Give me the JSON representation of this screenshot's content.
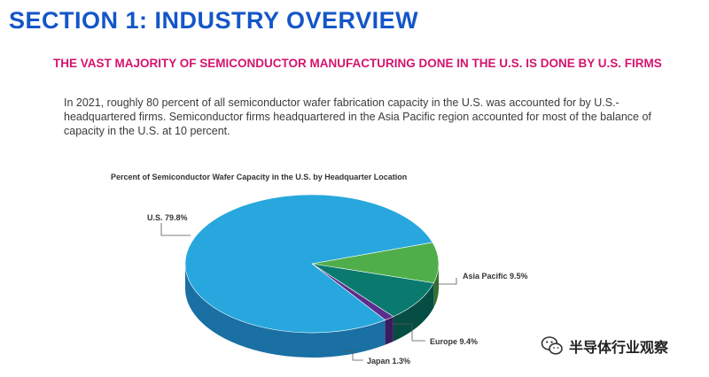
{
  "page": {
    "section_title": "SECTION 1: INDUSTRY OVERVIEW",
    "subtitle": "THE VAST MAJORITY OF SEMICONDUCTOR MANUFACTURING DONE IN THE U.S. IS DONE BY U.S. FIRMS",
    "paragraph": "In 2021, roughly 80 percent of all semiconductor wafer fabrication capacity in the U.S. was accounted for by U.S.-headquartered firms. Semiconductor firms headquartered in the Asia Pacific region accounted for most of the balance of capacity in the U.S. at 10 percent."
  },
  "watermark": {
    "text": "半导体行业观察",
    "icon": "wechat-icon"
  },
  "chart_data": {
    "type": "pie",
    "style": "3d",
    "title": "Percent of Semiconductor Wafer Capacity in the U.S. by Headquarter Location",
    "slices": [
      {
        "label": "Asia Pacific 9.5%",
        "name": "Asia Pacific",
        "value": 9.5,
        "color": "#4fae4a",
        "side_color": "#356f2e"
      },
      {
        "label": "Europe 9.4%",
        "name": "Europe",
        "value": 9.4,
        "color": "#0a7a6e",
        "side_color": "#064d44"
      },
      {
        "label": "Japan 1.3%",
        "name": "Japan",
        "value": 1.3,
        "color": "#5a2e8c",
        "side_color": "#3b1c5e"
      },
      {
        "label": "U.S. 79.8%",
        "name": "U.S.",
        "value": 79.8,
        "color": "#27a7dd",
        "side_color": "#1a6fa3"
      }
    ]
  }
}
